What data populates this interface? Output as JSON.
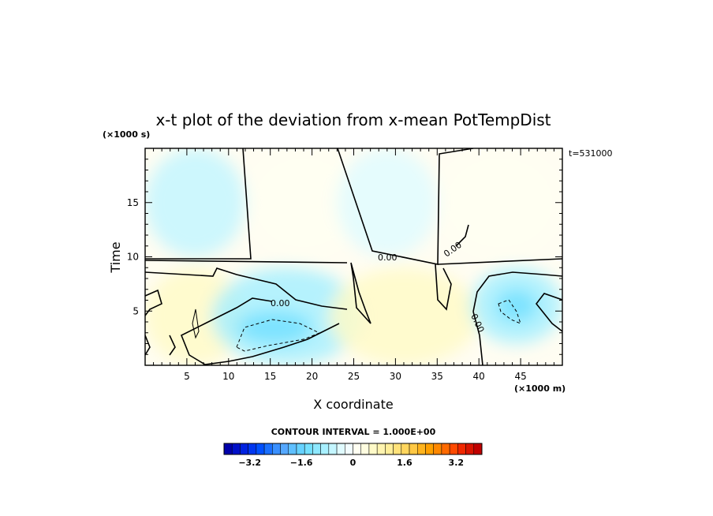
{
  "chart_data": {
    "type": "heatmap",
    "title": "x-t plot of the deviation from x-mean PotTempDist",
    "xlabel": "X coordinate",
    "ylabel": "Time",
    "x_units": "(×1000 m)",
    "y_units": "(×1000 s)",
    "time_annotation": "t=531000",
    "xlim": [
      0,
      50
    ],
    "ylim": [
      0,
      20
    ],
    "x_ticks": [
      5,
      10,
      15,
      20,
      25,
      30,
      35,
      40,
      45
    ],
    "y_ticks": [
      5,
      10,
      15
    ],
    "contour_interval_text": "CONTOUR INTERVAL = 1.000E+00",
    "contour_labels": [
      "0.00",
      "0.00",
      "0.00",
      "0.00"
    ],
    "colorbar": {
      "ticks": [
        "−3.2",
        "−1.6",
        "0",
        "1.6",
        "3.2"
      ],
      "range": [
        -4,
        4
      ],
      "colors": [
        "#0000aa",
        "#0010c8",
        "#0022e0",
        "#0036f0",
        "#0050ff",
        "#1a70ff",
        "#3a90ff",
        "#55a8ff",
        "#5fc0ff",
        "#66d2ff",
        "#74e0ff",
        "#8ee8ff",
        "#a8f0ff",
        "#c4f6ff",
        "#e0fbff",
        "#f2fdff",
        "#fffff2",
        "#fffde0",
        "#fffac8",
        "#fff4b0",
        "#ffee99",
        "#ffe27a",
        "#ffd65e",
        "#ffc844",
        "#ffb41e",
        "#ffa000",
        "#ff8800",
        "#ff6a00",
        "#ff4a00",
        "#f02800",
        "#d81400",
        "#c00000"
      ]
    },
    "regions": [
      {
        "label": "upper-left light blue",
        "value": -0.6,
        "x": [
          0,
          12
        ],
        "y": [
          10,
          20
        ]
      },
      {
        "label": "upper-middle near zero",
        "value": 0.2,
        "x": [
          12,
          26
        ],
        "y": [
          10,
          20
        ]
      },
      {
        "label": "upper-center light blue",
        "value": -0.3,
        "x": [
          23,
          35
        ],
        "y": [
          10,
          20
        ]
      },
      {
        "label": "upper-right near zero",
        "value": 0.2,
        "x": [
          35,
          50
        ],
        "y": [
          10,
          20
        ]
      },
      {
        "label": "lower-left warm",
        "value": 0.5,
        "x": [
          0,
          12
        ],
        "y": [
          0,
          9
        ]
      },
      {
        "label": "lower blue band",
        "value": -0.8,
        "x": [
          8,
          26
        ],
        "y": [
          0,
          9
        ]
      },
      {
        "label": "minimum near x=14",
        "value": -1.5,
        "x": [
          11,
          20
        ],
        "y": [
          2,
          5
        ]
      },
      {
        "label": "lower-center warm",
        "value": 0.6,
        "x": [
          22,
          40
        ],
        "y": [
          0,
          9
        ]
      },
      {
        "label": "lower-right blue",
        "value": -1.0,
        "x": [
          39,
          50
        ],
        "y": [
          2,
          9
        ]
      },
      {
        "label": "minimum near x=44",
        "value": -1.3,
        "x": [
          42,
          47
        ],
        "y": [
          4,
          7
        ]
      }
    ]
  }
}
